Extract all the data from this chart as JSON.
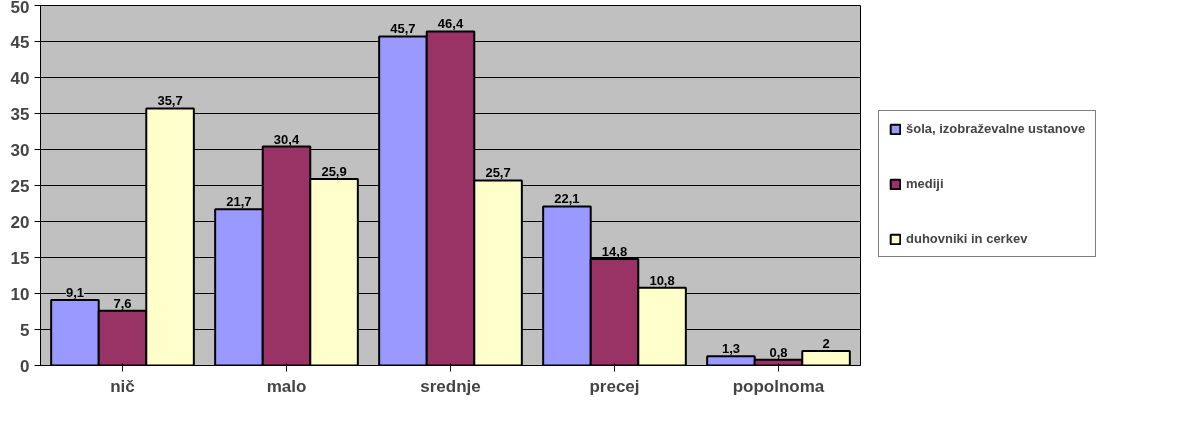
{
  "chart_data": {
    "type": "bar",
    "categories": [
      "nič",
      "malo",
      "srednje",
      "precej",
      "popolnoma"
    ],
    "series": [
      {
        "name": "šola, izobraževalne ustanove",
        "color": "#9999ff",
        "values": [
          9.1,
          21.7,
          45.7,
          22.1,
          1.3
        ],
        "value_labels": [
          "9,1",
          "21,7",
          "45,7",
          "22,1",
          "1,3"
        ]
      },
      {
        "name": "mediji",
        "color": "#993366",
        "values": [
          7.6,
          30.4,
          46.4,
          14.8,
          0.8
        ],
        "value_labels": [
          "7,6",
          "30,4",
          "46,4",
          "14,8",
          "0,8"
        ]
      },
      {
        "name": "duhovniki in cerkev",
        "color": "#ffffcc",
        "values": [
          35.7,
          25.9,
          25.7,
          10.8,
          2
        ],
        "value_labels": [
          "35,7",
          "25,9",
          "25,7",
          "10,8",
          "2"
        ]
      }
    ],
    "ylim": [
      0,
      50
    ],
    "yticks": [
      0,
      5,
      10,
      15,
      20,
      25,
      30,
      35,
      40,
      45,
      50
    ],
    "grid": "y",
    "legend": "right"
  }
}
